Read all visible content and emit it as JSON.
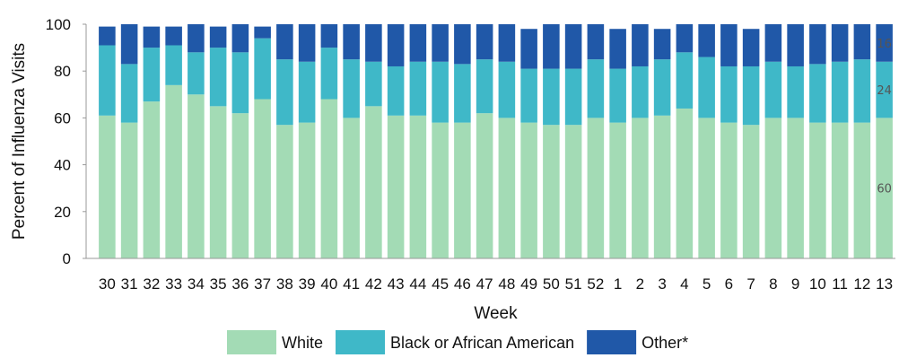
{
  "chart_data": {
    "type": "bar",
    "stacked": true,
    "xlabel": "Week",
    "ylabel": "Percent of Influenza Visits",
    "ylim": [
      0,
      100
    ],
    "yticks": [
      0,
      20,
      40,
      60,
      80,
      100
    ],
    "categories": [
      "30",
      "31",
      "32",
      "33",
      "34",
      "35",
      "36",
      "37",
      "38",
      "39",
      "40",
      "41",
      "42",
      "43",
      "44",
      "45",
      "46",
      "47",
      "48",
      "49",
      "50",
      "51",
      "52",
      "1",
      "2",
      "3",
      "4",
      "5",
      "6",
      "7",
      "8",
      "9",
      "10",
      "11",
      "12",
      "13"
    ],
    "series": [
      {
        "name": "White",
        "color": "#a3dbb5",
        "values": [
          61,
          58,
          67,
          74,
          70,
          65,
          62,
          68,
          57,
          58,
          68,
          60,
          65,
          61,
          61,
          58,
          58,
          62,
          60,
          58,
          57,
          57,
          60,
          58,
          60,
          61,
          64,
          60,
          58,
          57,
          60,
          60,
          58,
          58,
          58,
          60
        ]
      },
      {
        "name": "Black or African American",
        "color": "#3fb8c8",
        "values": [
          30,
          25,
          23,
          17,
          18,
          25,
          26,
          26,
          28,
          26,
          22,
          25,
          19,
          21,
          23,
          26,
          25,
          23,
          24,
          23,
          24,
          24,
          25,
          23,
          22,
          24,
          24,
          26,
          24,
          25,
          24,
          22,
          25,
          26,
          27,
          24
        ]
      },
      {
        "name": "Other*",
        "color": "#2058a8",
        "values": [
          8,
          17,
          9,
          8,
          12,
          9,
          12,
          5,
          15,
          16,
          10,
          15,
          16,
          18,
          16,
          16,
          17,
          15,
          16,
          17,
          19,
          19,
          15,
          17,
          18,
          13,
          12,
          14,
          18,
          16,
          16,
          18,
          17,
          16,
          15,
          16
        ]
      }
    ],
    "data_labels": [
      {
        "category": "13",
        "series": "White",
        "text": "60"
      },
      {
        "category": "13",
        "series": "Black or African American",
        "text": "24"
      },
      {
        "category": "13",
        "series": "Other*",
        "text": "16"
      }
    ],
    "legend": {
      "position": "bottom",
      "items": [
        "White",
        "Black or African American",
        "Other*"
      ]
    },
    "grid": false
  }
}
